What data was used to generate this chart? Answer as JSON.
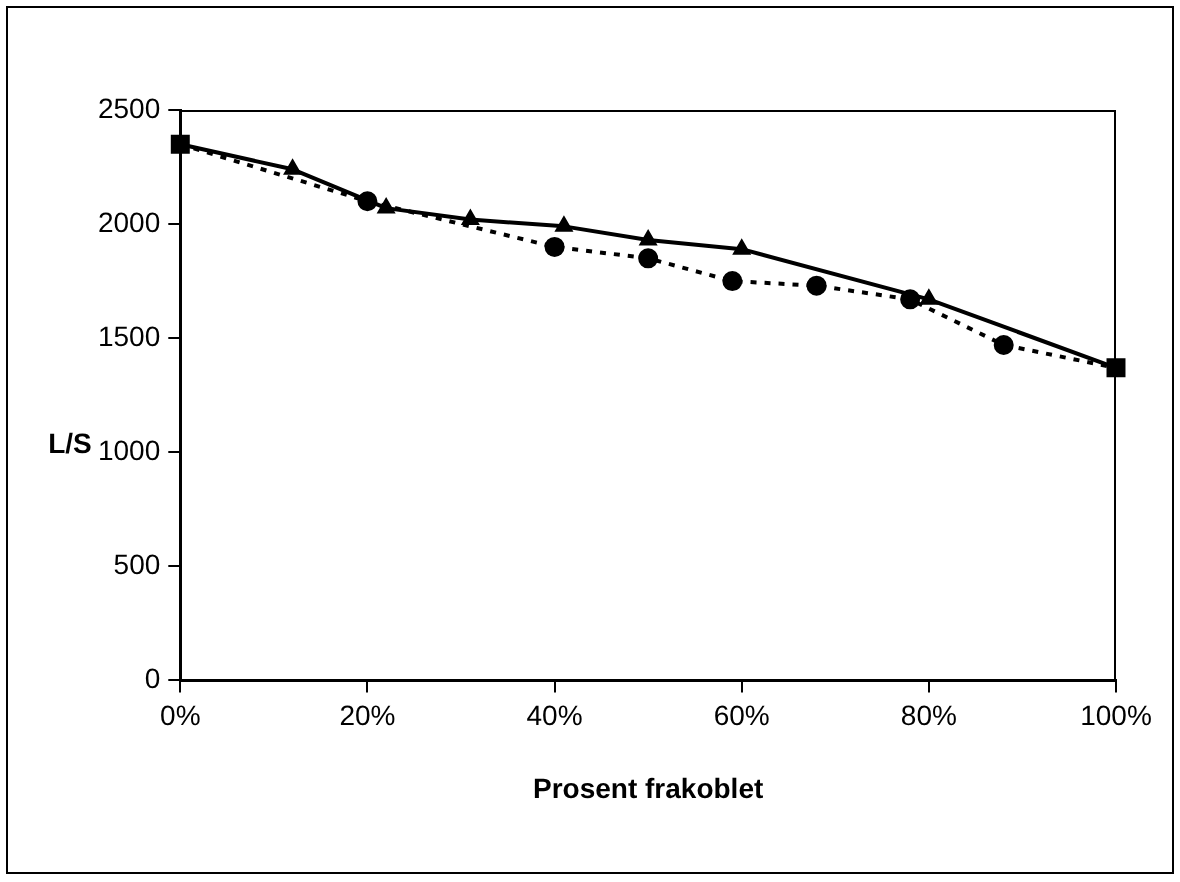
{
  "chart_data": {
    "type": "line",
    "xlabel": "Prosent frakoblet",
    "ylabel": "L/S",
    "xlim": [
      0,
      100
    ],
    "xticks": [
      {
        "value": 0,
        "label": "0%"
      },
      {
        "value": 20,
        "label": "20%"
      },
      {
        "value": 40,
        "label": "40%"
      },
      {
        "value": 60,
        "label": "60%"
      },
      {
        "value": 80,
        "label": "80%"
      },
      {
        "value": 100,
        "label": "100%"
      }
    ],
    "ylim": [
      0,
      2500
    ],
    "yticks": [
      0,
      500,
      1000,
      1500,
      2000,
      2500
    ],
    "grid": false,
    "legend": false,
    "series": [
      {
        "color": "#000000",
        "marker": "triangle",
        "line_style": "solid",
        "x": [
          0,
          12,
          22,
          31,
          41,
          50,
          60,
          80,
          100
        ],
        "values": [
          2350,
          2240,
          2070,
          2020,
          1990,
          1930,
          1890,
          1670,
          1370
        ]
      },
      {
        "color": "#000000",
        "marker": "circle",
        "line_style": "dotted",
        "x": [
          0,
          20,
          40,
          50,
          59,
          68,
          78,
          88,
          100
        ],
        "values": [
          2350,
          2100,
          1900,
          1850,
          1750,
          1730,
          1670,
          1470,
          1370
        ]
      },
      {
        "type": "scatter",
        "color": "#000000",
        "marker": "square",
        "x": [
          0,
          100
        ],
        "values": [
          2350,
          1370
        ]
      }
    ]
  }
}
